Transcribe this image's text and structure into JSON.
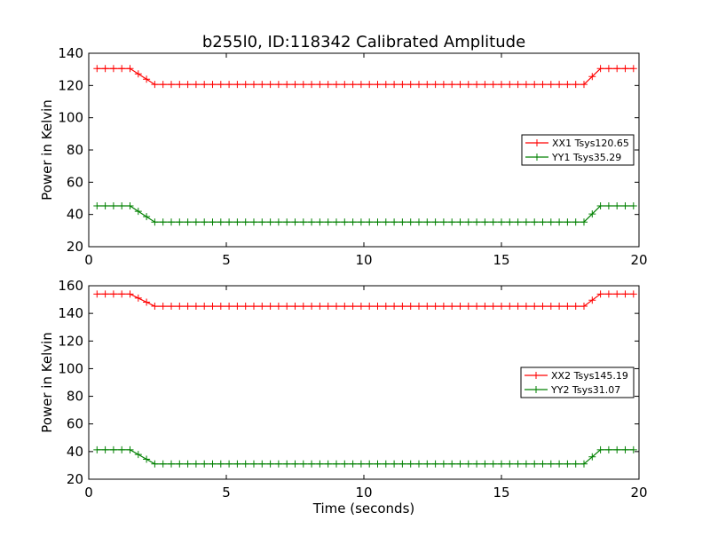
{
  "figure": {
    "title": "b255l0, ID:118342 Calibrated Amplitude",
    "xlabel": "Time (seconds)"
  },
  "chart_data": [
    {
      "type": "line",
      "title": "b255l0, ID:118342 Calibrated Amplitude",
      "xlabel": "",
      "ylabel": "Power in Kelvin",
      "xlim": [
        0,
        20
      ],
      "ylim": [
        20,
        140
      ],
      "xticks": [
        0,
        5,
        10,
        15,
        20
      ],
      "yticks": [
        20,
        40,
        60,
        80,
        100,
        120,
        140
      ],
      "grid": false,
      "legend_position": "center-right",
      "series": [
        {
          "name": "XX1 Tsys120.65",
          "color": "#ff0000",
          "high": 130.5,
          "low": 120.65
        },
        {
          "name": "YY1 Tsys35.29",
          "color": "#008000",
          "high": 45.3,
          "low": 35.29
        }
      ]
    },
    {
      "type": "line",
      "title": "",
      "xlabel": "Time (seconds)",
      "ylabel": "Power in Kelvin",
      "xlim": [
        0,
        20
      ],
      "ylim": [
        20,
        160
      ],
      "xticks": [
        0,
        5,
        10,
        15,
        20
      ],
      "yticks": [
        20,
        40,
        60,
        80,
        100,
        120,
        140,
        160
      ],
      "grid": false,
      "legend_position": "center-right",
      "series": [
        {
          "name": "XX2 Tsys145.19",
          "color": "#ff0000",
          "high": 154.0,
          "low": 145.19
        },
        {
          "name": "YY2 Tsys31.07",
          "color": "#008000",
          "high": 41.3,
          "low": 31.07
        }
      ]
    }
  ],
  "time_axis": {
    "start": 0.3,
    "end": 20.0,
    "step": 0.3,
    "ramp_down": [
      1.5,
      2.4
    ],
    "ramp_up": [
      18.0,
      18.6
    ]
  }
}
